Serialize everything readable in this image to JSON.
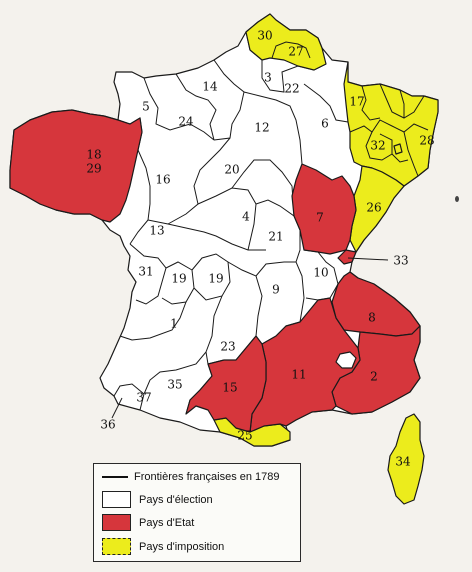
{
  "colors": {
    "election": "#ffffff",
    "etat": "#d6363c",
    "imposition": "#ecec1c"
  },
  "legend": {
    "border_label": "Frontières françaises en 1789",
    "election_label": "Pays d'élection",
    "etat_label": "Pays d'Etat",
    "imposition_label": "Pays d'imposition"
  },
  "regions": [
    {
      "id": "1",
      "label": "1",
      "category": "election"
    },
    {
      "id": "2",
      "label": "2",
      "category": "etat"
    },
    {
      "id": "3",
      "label": "3",
      "category": "election"
    },
    {
      "id": "4",
      "label": "4",
      "category": "election"
    },
    {
      "id": "5",
      "label": "5",
      "category": "election"
    },
    {
      "id": "6",
      "label": "6",
      "category": "election"
    },
    {
      "id": "7",
      "label": "7",
      "category": "etat"
    },
    {
      "id": "8",
      "label": "8",
      "category": "etat"
    },
    {
      "id": "9",
      "label": "9",
      "category": "election"
    },
    {
      "id": "10",
      "label": "10",
      "category": "election"
    },
    {
      "id": "11",
      "label": "11",
      "category": "etat"
    },
    {
      "id": "12",
      "label": "12",
      "category": "election"
    },
    {
      "id": "13",
      "label": "13",
      "category": "election"
    },
    {
      "id": "14",
      "label": "14",
      "category": "election"
    },
    {
      "id": "15",
      "label": "15",
      "category": "etat"
    },
    {
      "id": "16",
      "label": "16",
      "category": "election"
    },
    {
      "id": "17",
      "label": "17",
      "category": "imposition"
    },
    {
      "id": "18-29",
      "label": "18\n29",
      "category": "etat"
    },
    {
      "id": "19a",
      "label": "19",
      "category": "election"
    },
    {
      "id": "19b",
      "label": "19",
      "category": "election"
    },
    {
      "id": "20",
      "label": "20",
      "category": "election"
    },
    {
      "id": "21",
      "label": "21",
      "category": "election"
    },
    {
      "id": "22",
      "label": "22",
      "category": "election"
    },
    {
      "id": "23",
      "label": "23",
      "category": "election"
    },
    {
      "id": "24",
      "label": "24",
      "category": "election"
    },
    {
      "id": "25",
      "label": "25",
      "category": "imposition"
    },
    {
      "id": "26",
      "label": "26",
      "category": "imposition"
    },
    {
      "id": "27",
      "label": "27",
      "category": "imposition"
    },
    {
      "id": "28",
      "label": "28",
      "category": "imposition"
    },
    {
      "id": "30",
      "label": "30",
      "category": "imposition"
    },
    {
      "id": "31",
      "label": "31",
      "category": "election"
    },
    {
      "id": "32",
      "label": "32",
      "category": "imposition"
    },
    {
      "id": "33",
      "label": "33",
      "category": "etat"
    },
    {
      "id": "34",
      "label": "34",
      "category": "imposition"
    },
    {
      "id": "35",
      "label": "35",
      "category": "election"
    },
    {
      "id": "36",
      "label": "36",
      "category": "election"
    },
    {
      "id": "37",
      "label": "37",
      "category": "election"
    }
  ]
}
